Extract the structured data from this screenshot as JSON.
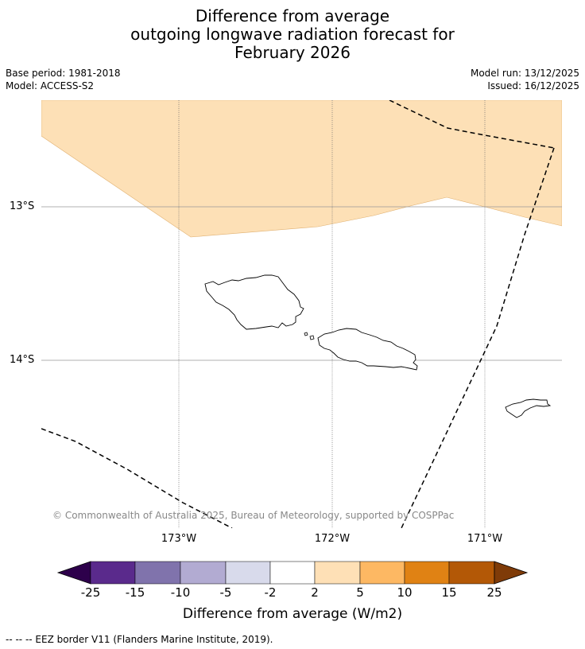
{
  "title": {
    "line1": "Difference from average",
    "line2": "outgoing longwave radiation forecast for",
    "line3": "February 2026"
  },
  "info": {
    "base_period": "Base period: 1981-2018",
    "model": "Model: ACCESS-S2",
    "model_run": "Model run: 13/12/2025",
    "issued": "Issued: 16/12/2025"
  },
  "map": {
    "lat_labels": [
      "13°S",
      "14°S"
    ],
    "lon_labels": [
      "173°W",
      "172°W",
      "171°W"
    ],
    "copyright": "© Commonwealth of Australia 2025, Bureau of Meteorology, supported by COSPPac",
    "anomaly_fill_color": "#fde0b6",
    "anomaly_fill_class": "2 to 5"
  },
  "colorbar": {
    "ticks": [
      "-25",
      "-15",
      "-10",
      "-5",
      "-2",
      "2",
      "5",
      "10",
      "15",
      "25"
    ],
    "colors": [
      "#2d004b",
      "#5a2a8c",
      "#8073ac",
      "#b2abd2",
      "#d8daeb",
      "#ffffff",
      "#fee0b6",
      "#fdb863",
      "#e08214",
      "#b35806",
      "#7f3b08"
    ],
    "label": "Difference from average (W/m2)"
  },
  "legend": {
    "eez_text": "--  --  -- EEZ border V11 (Flanders Marine Institute, 2019)."
  }
}
